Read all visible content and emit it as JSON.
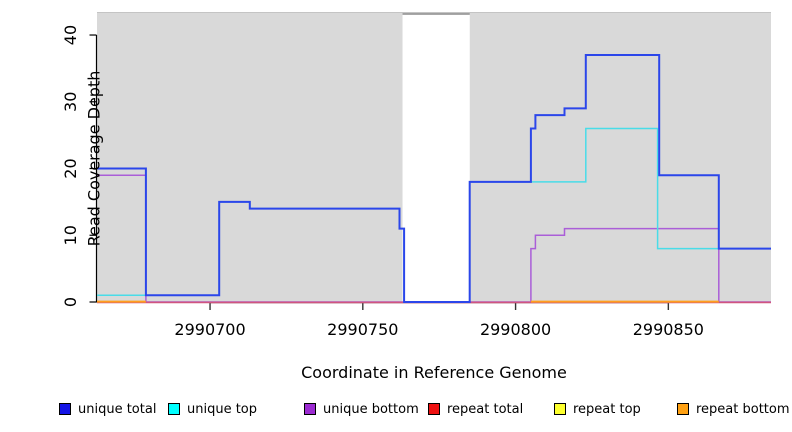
{
  "chart_data": {
    "type": "line",
    "subtype": "step-coverage-wiggle",
    "title": "",
    "xlabel": "Coordinate in Reference Genome",
    "ylabel": "Read Coverage Depth",
    "xlim": [
      2990663,
      2990883.6
    ],
    "ylim": [
      0,
      43.3
    ],
    "xticks": [
      2990700,
      2990750,
      2990800,
      2990850
    ],
    "yticks": [
      0,
      10,
      20,
      30,
      40
    ],
    "grid": false,
    "legend_position": "bottom",
    "plot_background": "#d9d9d9",
    "no_data_region": {
      "x0": 2990763,
      "x1": 2990785,
      "fill": "#ffffff",
      "top_edge_color": "#8c8c8c"
    },
    "axis_color": "#000000",
    "series": [
      {
        "name": "unique total",
        "color": "#2b46ea",
        "legend_color": "#1414e6",
        "width": 2,
        "segments": [
          [
            [
              2990663,
              20
            ],
            [
              2990679,
              20
            ],
            [
              2990679,
              1
            ],
            [
              2990703,
              1
            ],
            [
              2990703,
              15
            ],
            [
              2990713,
              15
            ],
            [
              2990713,
              14
            ],
            [
              2990762,
              14
            ],
            [
              2990762,
              11
            ],
            [
              2990763.5,
              11
            ],
            [
              2990763.5,
              0
            ],
            [
              2990785,
              0
            ],
            [
              2990785,
              18
            ],
            [
              2990805,
              18
            ],
            [
              2990805,
              26
            ],
            [
              2990806.5,
              26
            ],
            [
              2990806.5,
              28
            ],
            [
              2990816,
              28
            ],
            [
              2990816,
              29
            ],
            [
              2990823,
              29
            ],
            [
              2990823,
              37
            ],
            [
              2990847,
              37
            ],
            [
              2990847,
              19
            ],
            [
              2990866.5,
              19
            ],
            [
              2990866.5,
              8
            ],
            [
              2990883.6,
              8
            ]
          ]
        ]
      },
      {
        "name": "unique top",
        "color": "#49dce8",
        "legend_color": "#00ffff",
        "width": 1.5,
        "segments": [
          [
            [
              2990663,
              1
            ],
            [
              2990703,
              1
            ],
            [
              2990703,
              15
            ],
            [
              2990713,
              15
            ],
            [
              2990713,
              14
            ],
            [
              2990762,
              14
            ],
            [
              2990762,
              11
            ],
            [
              2990763.5,
              11
            ],
            [
              2990763.5,
              0
            ],
            [
              2990785,
              0
            ],
            [
              2990785,
              18
            ],
            [
              2990823,
              18
            ],
            [
              2990823,
              26
            ],
            [
              2990846.5,
              26
            ],
            [
              2990846.5,
              8
            ],
            [
              2990883.6,
              8
            ]
          ]
        ]
      },
      {
        "name": "unique bottom",
        "color": "#aa5ed8",
        "legend_color": "#9c2bd2",
        "width": 1.5,
        "segments": [
          [
            [
              2990663,
              19
            ],
            [
              2990679,
              19
            ],
            [
              2990679,
              0
            ],
            [
              2990805,
              0
            ],
            [
              2990805,
              8
            ],
            [
              2990806.5,
              8
            ],
            [
              2990806.5,
              10
            ],
            [
              2990816,
              10
            ],
            [
              2990816,
              11
            ],
            [
              2990866.5,
              11
            ],
            [
              2990866.5,
              0
            ],
            [
              2990883.6,
              0
            ]
          ]
        ]
      },
      {
        "name": "repeat total",
        "color": "#d0557f",
        "legend_color": "#ee1111",
        "width": 1.6,
        "segments": [
          [
            [
              2990663,
              0
            ],
            [
              2990883.6,
              0
            ]
          ]
        ]
      },
      {
        "name": "repeat top",
        "color": "#ffff2e",
        "legend_color": "#fdff2e",
        "width": 1.5,
        "segments": []
      },
      {
        "name": "repeat bottom",
        "color": "#ff9f1f",
        "legend_color": "#ffa113",
        "width": 2,
        "segments": [
          [
            [
              2990663,
              0
            ],
            [
              2990679,
              0
            ]
          ],
          [
            [
              2990805,
              0
            ],
            [
              2990866.5,
              0
            ]
          ]
        ]
      }
    ],
    "draw_order": [
      "unique bottom",
      "repeat top",
      "repeat total",
      "repeat bottom",
      "unique top",
      "unique total"
    ]
  }
}
